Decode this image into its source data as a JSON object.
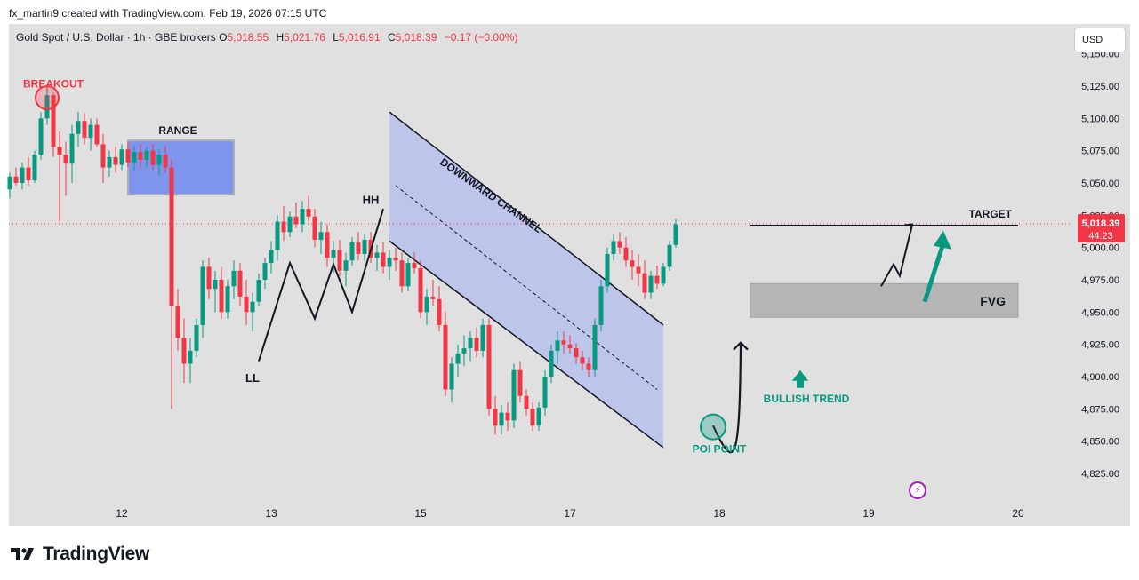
{
  "attribution": "fx_martin9 created with TradingView.com, Feb 19, 2026 07:15 UTC",
  "symbol": {
    "title": "Gold Spot / U.S. Dollar · 1h · GBE brokers",
    "open_label": "O",
    "open": "5,018.55",
    "high_label": "H",
    "high": "5,021.76",
    "low_label": "L",
    "low": "5,016.91",
    "close_label": "C",
    "close": "5,018.39",
    "change": "−0.17 (−0.00%)"
  },
  "currency": "USD",
  "price_label": {
    "price": "5,018.39",
    "countdown": "44:23"
  },
  "brand": "TradingView",
  "colors": {
    "up": "#089981",
    "down": "#f23645",
    "channel": "#b7c0ec",
    "fvg": "#a8a8a8",
    "range_box": "#6f88f0",
    "green_annot": "#089981",
    "red_annot": "#f23645"
  },
  "chart_data": {
    "type": "candlestick",
    "instrument": "Gold Spot / U.S. Dollar",
    "interval": "1h",
    "y_axis": {
      "ticks": [
        "5,150.00",
        "5,125.00",
        "5,100.00",
        "5,075.00",
        "5,050.00",
        "5,025.00",
        "5,000.00",
        "4,975.00",
        "4,950.00",
        "4,925.00",
        "4,900.00",
        "4,875.00",
        "4,850.00",
        "4,825.00"
      ],
      "ylim": [
        4815,
        5150
      ]
    },
    "x_axis": {
      "ticks": [
        "12",
        "13",
        "15",
        "17",
        "18",
        "19",
        "20"
      ],
      "tick_index": [
        18,
        42,
        66,
        90,
        114,
        138,
        162
      ]
    },
    "last_price": 5018.39,
    "series": [
      {
        "d": [
          5045,
          5058,
          5038,
          5055
        ]
      },
      {
        "d": [
          5055,
          5062,
          5048,
          5050
        ]
      },
      {
        "d": [
          5050,
          5066,
          5045,
          5062
        ]
      },
      {
        "d": [
          5062,
          5070,
          5048,
          5052
        ]
      },
      {
        "d": [
          5052,
          5075,
          5050,
          5072
        ]
      },
      {
        "d": [
          5072,
          5105,
          5068,
          5100
        ]
      },
      {
        "d": [
          5100,
          5125,
          5095,
          5118
        ]
      },
      {
        "d": [
          5118,
          5120,
          5070,
          5078
        ]
      },
      {
        "d": [
          5078,
          5090,
          5020,
          5072
        ]
      },
      {
        "d": [
          5072,
          5082,
          5040,
          5065
        ]
      },
      {
        "d": [
          5065,
          5095,
          5050,
          5088
        ]
      },
      {
        "d": [
          5088,
          5105,
          5078,
          5098
        ]
      },
      {
        "d": [
          5098,
          5104,
          5080,
          5085
        ]
      },
      {
        "d": [
          5085,
          5100,
          5075,
          5095
        ]
      },
      {
        "d": [
          5095,
          5100,
          5078,
          5080
        ]
      },
      {
        "d": [
          5080,
          5088,
          5050,
          5062
        ]
      },
      {
        "d": [
          5062,
          5075,
          5055,
          5070
        ]
      },
      {
        "d": [
          5070,
          5078,
          5058,
          5064
        ]
      },
      {
        "d": [
          5064,
          5080,
          5060,
          5076
        ]
      },
      {
        "d": [
          5076,
          5082,
          5062,
          5066
        ]
      },
      {
        "d": [
          5066,
          5079,
          5060,
          5074
        ]
      },
      {
        "d": [
          5074,
          5080,
          5062,
          5068
        ]
      },
      {
        "d": [
          5068,
          5078,
          5062,
          5075
        ]
      },
      {
        "d": [
          5075,
          5080,
          5060,
          5064
        ]
      },
      {
        "d": [
          5064,
          5076,
          5056,
          5072
        ]
      },
      {
        "d": [
          5072,
          5078,
          5058,
          5062
        ]
      },
      {
        "d": [
          5062,
          5068,
          4875,
          4955
        ]
      },
      {
        "d": [
          4955,
          4968,
          4920,
          4930
        ]
      },
      {
        "d": [
          4930,
          4945,
          4895,
          4910
        ]
      },
      {
        "d": [
          4910,
          4930,
          4895,
          4920
        ]
      },
      {
        "d": [
          4920,
          4945,
          4915,
          4940
        ]
      },
      {
        "d": [
          4940,
          4990,
          4930,
          4985
        ]
      },
      {
        "d": [
          4985,
          4992,
          4960,
          4968
        ]
      },
      {
        "d": [
          4968,
          4982,
          4950,
          4975
        ]
      },
      {
        "d": [
          4975,
          4985,
          4945,
          4950
        ]
      },
      {
        "d": [
          4950,
          4975,
          4945,
          4970
        ]
      },
      {
        "d": [
          4970,
          4990,
          4960,
          4982
        ]
      },
      {
        "d": [
          4982,
          4988,
          4955,
          4962
        ]
      },
      {
        "d": [
          4962,
          4975,
          4940,
          4950
        ]
      },
      {
        "d": [
          4950,
          4965,
          4935,
          4958
        ]
      },
      {
        "d": [
          4958,
          4980,
          4955,
          4975
        ]
      },
      {
        "d": [
          4975,
          4992,
          4968,
          4988
        ]
      },
      {
        "d": [
          4988,
          5005,
          4980,
          4998
        ]
      },
      {
        "d": [
          4998,
          5025,
          4990,
          5020
        ]
      },
      {
        "d": [
          5020,
          5032,
          5005,
          5012
        ]
      },
      {
        "d": [
          5012,
          5028,
          5008,
          5024
        ]
      },
      {
        "d": [
          5024,
          5035,
          5015,
          5018
        ]
      },
      {
        "d": [
          5018,
          5036,
          5012,
          5030
        ]
      },
      {
        "d": [
          5030,
          5040,
          5020,
          5024
        ]
      },
      {
        "d": [
          5024,
          5030,
          5000,
          5006
        ]
      },
      {
        "d": [
          5006,
          5020,
          4995,
          5012
        ]
      },
      {
        "d": [
          5012,
          5018,
          4985,
          4992
        ]
      },
      {
        "d": [
          4992,
          5005,
          4980,
          4998
        ]
      },
      {
        "d": [
          4998,
          5006,
          4978,
          4982
        ]
      },
      {
        "d": [
          4982,
          4996,
          4970,
          4990
        ]
      },
      {
        "d": [
          4990,
          5008,
          4986,
          5004
        ]
      },
      {
        "d": [
          5004,
          5012,
          4990,
          4995
        ]
      },
      {
        "d": [
          4995,
          5010,
          4990,
          5006
        ]
      },
      {
        "d": [
          5006,
          5012,
          4988,
          4992
        ]
      },
      {
        "d": [
          4992,
          5002,
          4982,
          4996
        ]
      },
      {
        "d": [
          4996,
          5004,
          4980,
          4985
        ]
      },
      {
        "d": [
          4985,
          4998,
          4975,
          4992
        ]
      },
      {
        "d": [
          4992,
          5000,
          4982,
          4990
        ]
      },
      {
        "d": [
          4990,
          4996,
          4965,
          4970
        ]
      },
      {
        "d": [
          4970,
          4992,
          4966,
          4988
        ]
      },
      {
        "d": [
          4988,
          4996,
          4980,
          4984
        ]
      },
      {
        "d": [
          4984,
          4990,
          4945,
          4950
        ]
      },
      {
        "d": [
          4950,
          4968,
          4940,
          4962
        ]
      },
      {
        "d": [
          4962,
          4975,
          4955,
          4960
        ]
      },
      {
        "d": [
          4960,
          4970,
          4935,
          4940
        ]
      },
      {
        "d": [
          4940,
          4950,
          4885,
          4890
        ]
      },
      {
        "d": [
          4890,
          4915,
          4880,
          4910
        ]
      },
      {
        "d": [
          4910,
          4925,
          4900,
          4918
        ]
      },
      {
        "d": [
          4918,
          4932,
          4908,
          4922
        ]
      },
      {
        "d": [
          4922,
          4935,
          4912,
          4930
        ]
      },
      {
        "d": [
          4930,
          4938,
          4915,
          4920
        ]
      },
      {
        "d": [
          4920,
          4945,
          4915,
          4940
        ]
      },
      {
        "d": [
          4940,
          4945,
          4870,
          4875
        ]
      },
      {
        "d": [
          4875,
          4885,
          4855,
          4862
        ]
      },
      {
        "d": [
          4862,
          4878,
          4855,
          4872
        ]
      },
      {
        "d": [
          4872,
          4880,
          4858,
          4866
        ]
      },
      {
        "d": [
          4866,
          4910,
          4860,
          4905
        ]
      },
      {
        "d": [
          4905,
          4912,
          4880,
          4885
        ]
      },
      {
        "d": [
          4885,
          4890,
          4870,
          4875
        ]
      },
      {
        "d": [
          4875,
          4880,
          4858,
          4862
        ]
      },
      {
        "d": [
          4862,
          4880,
          4858,
          4876
        ]
      },
      {
        "d": [
          4876,
          4905,
          4870,
          4900
        ]
      },
      {
        "d": [
          4900,
          4925,
          4895,
          4920
        ]
      },
      {
        "d": [
          4920,
          4935,
          4910,
          4928
        ]
      },
      {
        "d": [
          4928,
          4935,
          4918,
          4925
        ]
      },
      {
        "d": [
          4925,
          4932,
          4918,
          4922
        ]
      },
      {
        "d": [
          4922,
          4926,
          4910,
          4915
        ]
      },
      {
        "d": [
          4915,
          4920,
          4905,
          4910
        ]
      },
      {
        "d": [
          4910,
          4915,
          4900,
          4905
        ]
      },
      {
        "d": [
          4905,
          4945,
          4900,
          4940
        ]
      },
      {
        "d": [
          4940,
          4975,
          4935,
          4970
        ]
      },
      {
        "d": [
          4970,
          5000,
          4965,
          4995
        ]
      },
      {
        "d": [
          4995,
          5010,
          4990,
          5005
        ]
      },
      {
        "d": [
          5005,
          5012,
          4995,
          5000
        ]
      },
      {
        "d": [
          5000,
          5008,
          4985,
          4990
        ]
      },
      {
        "d": [
          4990,
          4998,
          4975,
          4985
        ]
      },
      {
        "d": [
          4985,
          4995,
          4970,
          4980
        ]
      },
      {
        "d": [
          4980,
          4990,
          4960,
          4965
        ]
      },
      {
        "d": [
          4965,
          4982,
          4960,
          4978
        ]
      },
      {
        "d": [
          4978,
          4986,
          4968,
          4972
        ]
      },
      {
        "d": [
          4972,
          4988,
          4970,
          4985
        ]
      },
      {
        "d": [
          4985,
          5005,
          4982,
          5002
        ]
      },
      {
        "d": [
          5002,
          5022,
          5000,
          5018
        ]
      }
    ],
    "annotations": [
      "BREAKOUT",
      "RANGE",
      "HH",
      "LL",
      "DOWNWARD CHANNEL",
      "POI POINT",
      "BULLISH TREND",
      "TARGET",
      "FVG"
    ]
  }
}
